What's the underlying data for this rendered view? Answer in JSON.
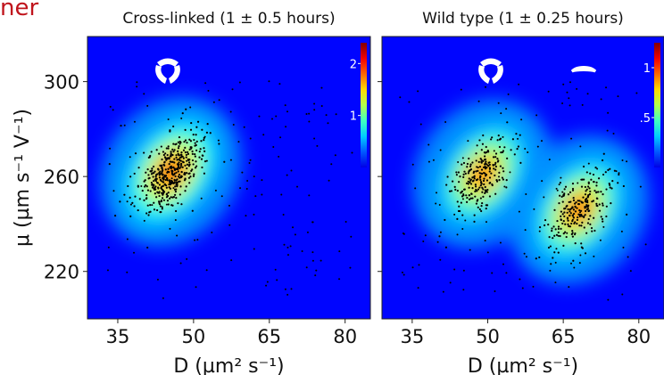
{
  "header_fragment": "ner",
  "chart_data": [
    {
      "type": "heatmap",
      "title": "Cross-linked (1 ± 0.5 hours)",
      "xlabel": "D (µm² s⁻¹)",
      "ylabel": "μ (µm s⁻¹ V⁻¹)",
      "xlim": [
        29,
        85
      ],
      "ylim": [
        200,
        319
      ],
      "xticks": [
        35,
        50,
        65,
        80
      ],
      "yticks": [
        220,
        260,
        300
      ],
      "colorbar": {
        "min": 0,
        "max": 2.4,
        "ticks": [
          {
            "value": 1,
            "label": "1"
          },
          {
            "value": 2,
            "label": "2"
          }
        ]
      },
      "clusters": [
        {
          "center": [
            45.5,
            262
          ],
          "peak_density": 2.2
        }
      ],
      "symbol": "trefoil"
    },
    {
      "type": "heatmap",
      "title": "Wild type (1 ± 0.25 hours)",
      "xlabel": "D (µm² s⁻¹)",
      "ylabel": "",
      "xlim": [
        29,
        85
      ],
      "ylim": [
        200,
        319
      ],
      "xticks": [
        35,
        50,
        65,
        80
      ],
      "yticks": [
        220,
        260,
        300
      ],
      "colorbar": {
        "min": 0,
        "max": 1.25,
        "ticks": [
          {
            "value": 0.5,
            "label": ".5"
          },
          {
            "value": 1,
            "label": "1"
          }
        ]
      },
      "clusters": [
        {
          "center": [
            49,
            261
          ],
          "peak_density": 1.0
        },
        {
          "center": [
            68,
            246
          ],
          "peak_density": 1.05
        }
      ],
      "symbol": "trefoil-and-ellipse"
    }
  ]
}
